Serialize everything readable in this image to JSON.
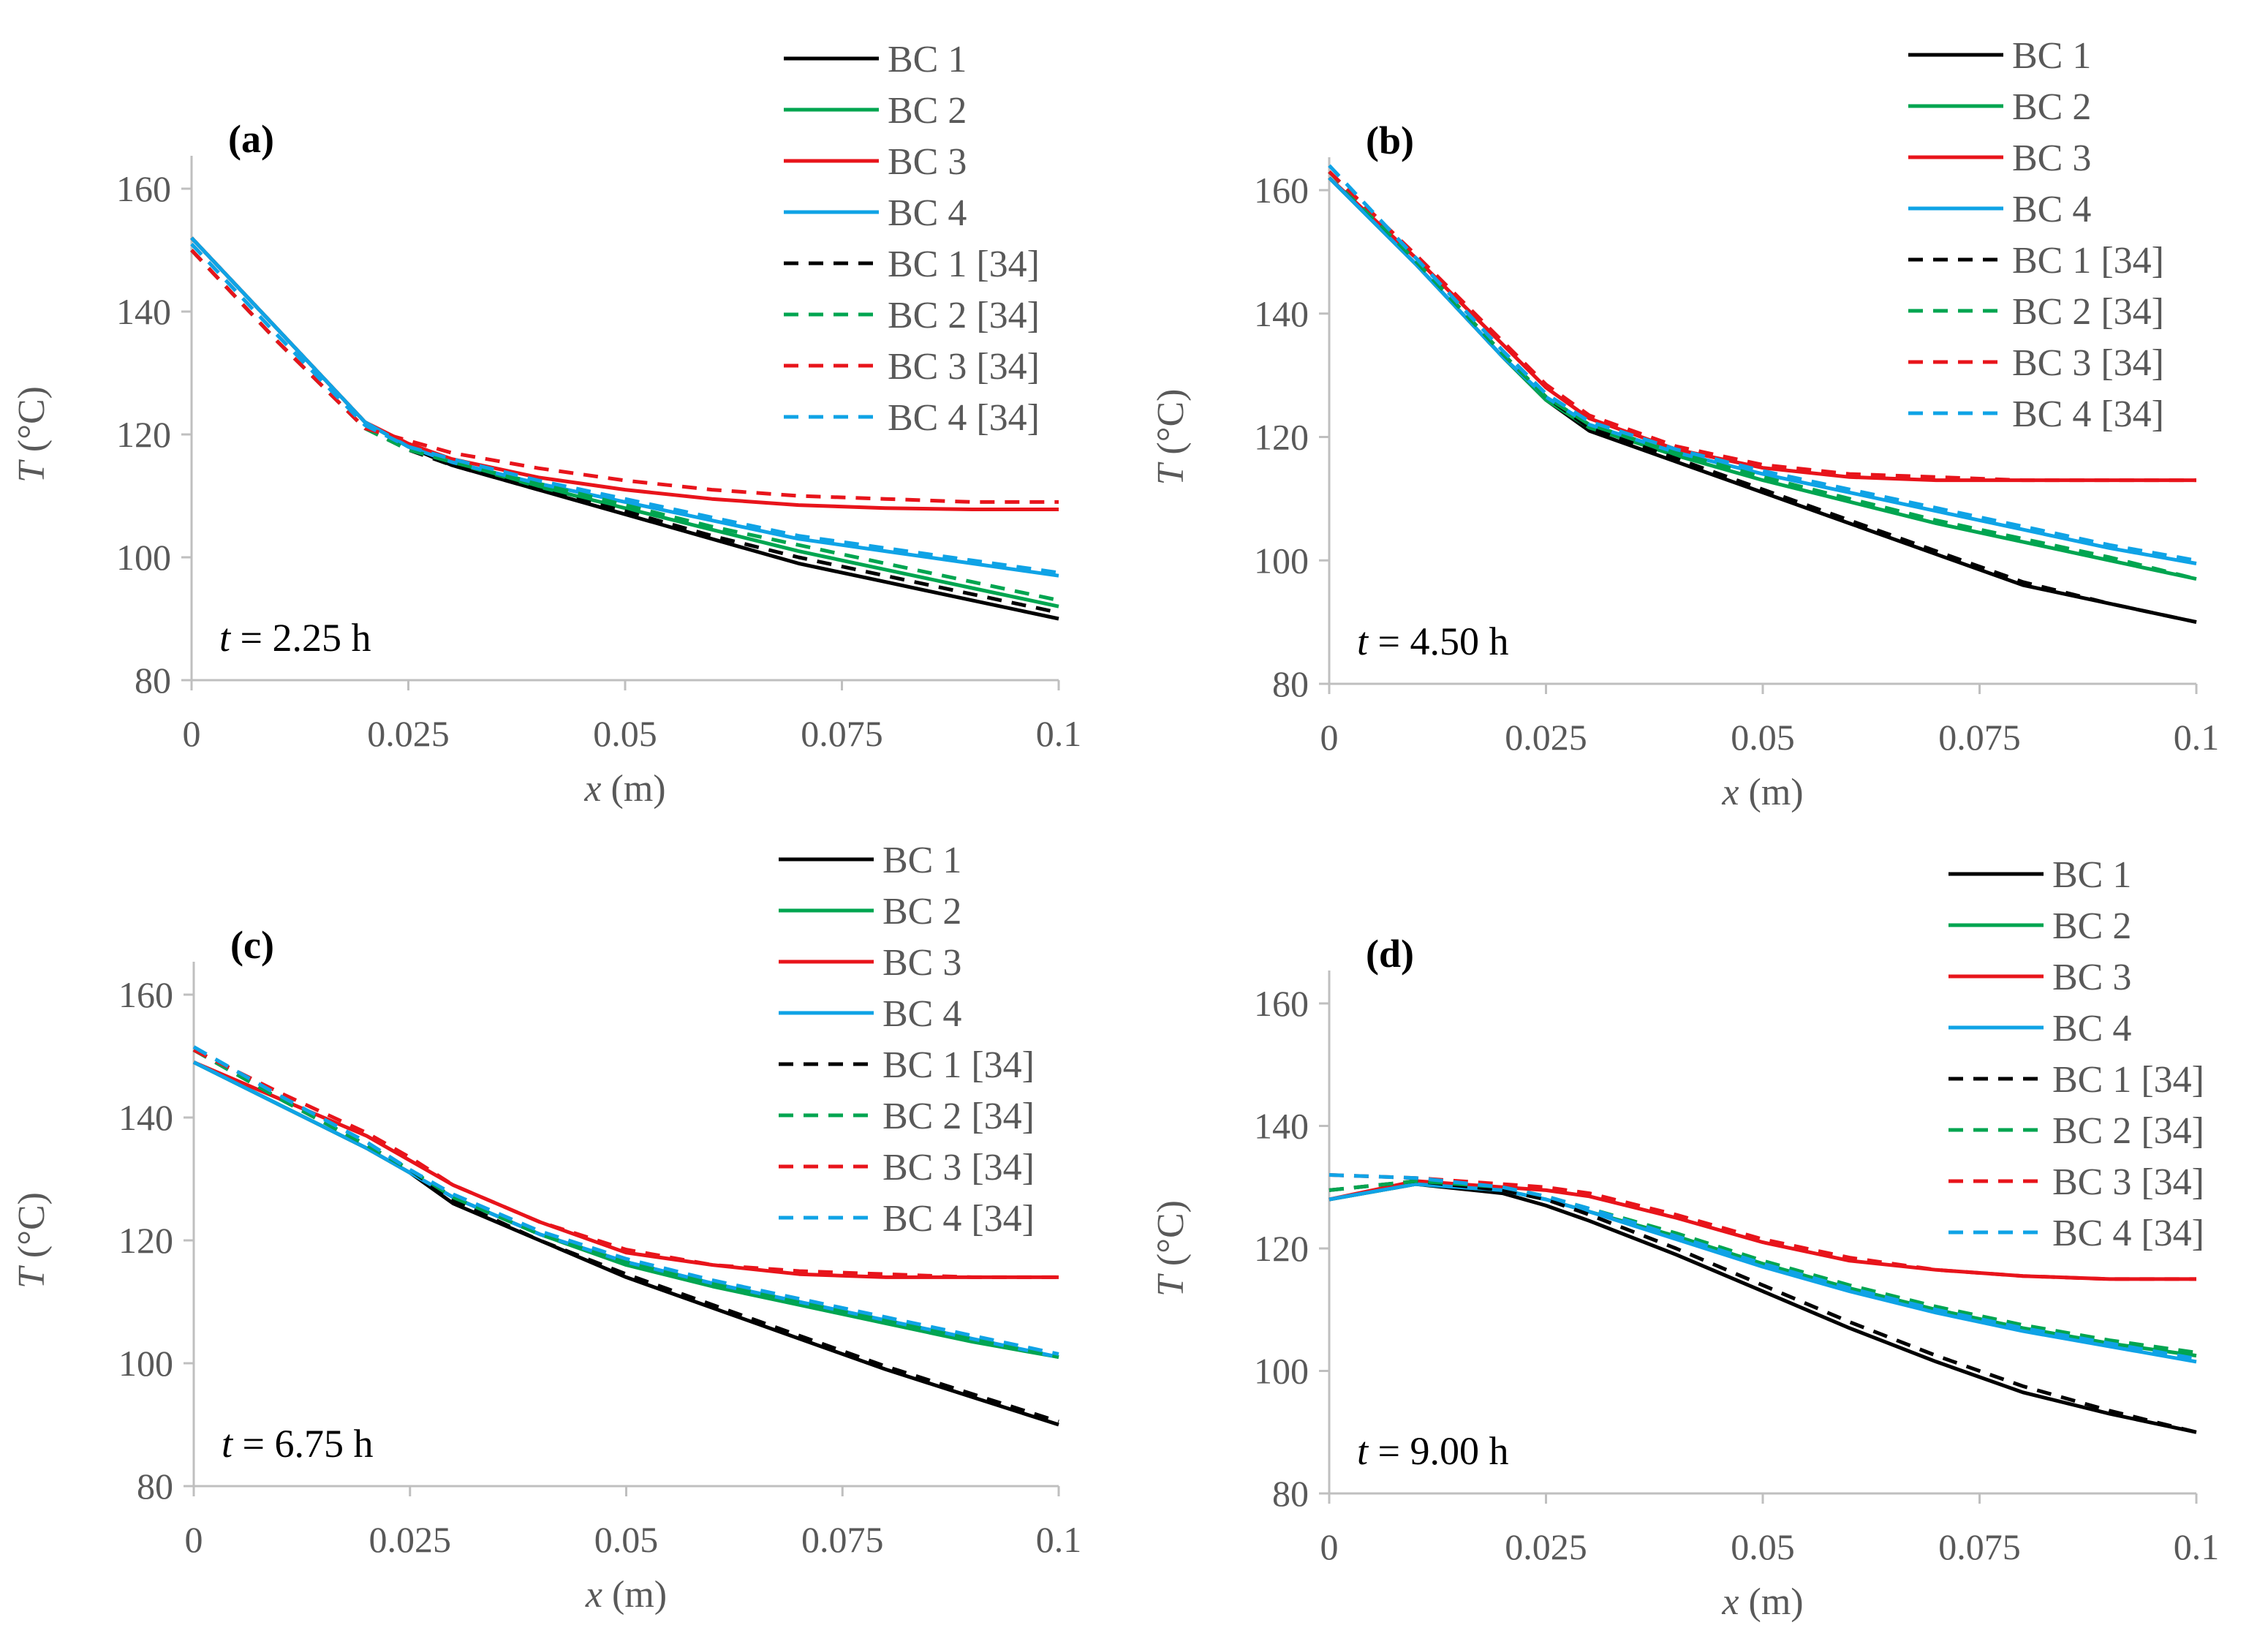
{
  "series_styles": [
    {
      "key": "bc1",
      "name": "BC 1",
      "color": "#000000",
      "dashed": false
    },
    {
      "key": "bc2",
      "name": "BC 2",
      "color": "#00A550",
      "dashed": false
    },
    {
      "key": "bc3",
      "name": "BC 3",
      "color": "#E8141B",
      "dashed": false
    },
    {
      "key": "bc4",
      "name": "BC 4",
      "color": "#0FA3E6",
      "dashed": false
    },
    {
      "key": "bc1_ref",
      "name": "BC 1 [34]",
      "color": "#000000",
      "dashed": true
    },
    {
      "key": "bc2_ref",
      "name": "BC 2 [34]",
      "color": "#00A550",
      "dashed": true
    },
    {
      "key": "bc3_ref",
      "name": "BC 3 [34]",
      "color": "#E8141B",
      "dashed": true
    },
    {
      "key": "bc4_ref",
      "name": "BC 4 [34]",
      "color": "#0FA3E6",
      "dashed": true
    }
  ],
  "chart_data": [
    {
      "type": "line",
      "panel_label": "(a)",
      "time_label": {
        "var": "t",
        "text": " = 2.25 h"
      },
      "xlabel": {
        "var": "x",
        "unit": " (m)"
      },
      "ylabel": {
        "var": "T",
        "unit": " (°C)"
      },
      "xlim": [
        0,
        0.1
      ],
      "ylim": [
        80,
        160
      ],
      "xticks": [
        "0",
        "0.025",
        "0.05",
        "0.075",
        "0.1"
      ],
      "yticks": [
        "80",
        "100",
        "120",
        "140",
        "160"
      ],
      "x": [
        0,
        0.01,
        0.02,
        0.025,
        0.03,
        0.04,
        0.05,
        0.06,
        0.07,
        0.08,
        0.09,
        0.1
      ],
      "series": [
        {
          "name": "BC 1",
          "values": [
            152,
            137,
            122,
            118,
            115,
            111,
            107,
            103,
            99,
            96,
            93,
            90
          ]
        },
        {
          "name": "BC 2",
          "values": [
            152,
            137,
            122,
            118,
            115.5,
            111.5,
            108,
            104.5,
            101,
            98,
            95,
            92
          ]
        },
        {
          "name": "BC 3",
          "values": [
            152,
            137,
            122,
            118.5,
            116,
            113,
            111,
            109.5,
            108.5,
            108,
            107.8,
            107.8
          ]
        },
        {
          "name": "BC 4",
          "values": [
            152,
            137,
            122,
            118,
            115.5,
            112,
            109,
            106,
            103,
            101,
            99,
            97
          ]
        },
        {
          "name": "BC 1 [34]",
          "values": [
            150,
            135,
            121,
            117.5,
            115,
            111,
            107.5,
            103.5,
            100,
            97,
            94,
            91
          ]
        },
        {
          "name": "BC 2 [34]",
          "values": [
            150,
            135,
            121,
            117.5,
            115.5,
            112,
            108.5,
            105,
            102,
            99,
            96,
            93
          ]
        },
        {
          "name": "BC 3 [34]",
          "values": [
            150,
            135,
            121,
            119,
            117,
            114.5,
            112.5,
            111,
            110,
            109.5,
            109,
            109
          ]
        },
        {
          "name": "BC 4 [34]",
          "values": [
            151,
            136,
            121.5,
            118,
            116,
            112.5,
            109.5,
            106.5,
            103.5,
            101.5,
            99.5,
            97.5
          ]
        }
      ]
    },
    {
      "type": "line",
      "panel_label": "(b)",
      "time_label": {
        "var": "t",
        "text": " = 4.50 h"
      },
      "xlabel": {
        "var": "x",
        "unit": " (m)"
      },
      "ylabel": {
        "var": "T",
        "unit": " (°C)"
      },
      "xlim": [
        0,
        0.1
      ],
      "ylim": [
        80,
        160
      ],
      "xticks": [
        "0",
        "0.025",
        "0.05",
        "0.075",
        "0.1"
      ],
      "yticks": [
        "80",
        "100",
        "120",
        "140",
        "160"
      ],
      "x": [
        0,
        0.01,
        0.02,
        0.025,
        0.03,
        0.04,
        0.05,
        0.06,
        0.07,
        0.08,
        0.09,
        0.1
      ],
      "series": [
        {
          "name": "BC 1",
          "values": [
            162,
            148,
            133,
            126,
            121,
            116,
            111,
            106,
            101,
            96,
            93,
            90
          ]
        },
        {
          "name": "BC 2",
          "values": [
            162,
            148,
            133,
            126,
            121.5,
            117,
            113,
            109.5,
            106,
            103,
            100,
            97
          ]
        },
        {
          "name": "BC 3",
          "values": [
            162,
            149,
            135,
            128,
            123,
            118,
            115,
            113.5,
            113,
            113,
            113,
            113
          ]
        },
        {
          "name": "BC 4",
          "values": [
            162,
            148,
            133,
            126.5,
            122,
            117.5,
            114,
            111,
            108,
            105,
            102,
            99.5
          ]
        },
        {
          "name": "BC 1 [34]",
          "values": [
            163,
            148.5,
            133.5,
            126.5,
            121.5,
            116.5,
            111.5,
            106.5,
            101.5,
            96.5,
            93,
            90
          ]
        },
        {
          "name": "BC 2 [34]",
          "values": [
            163,
            148.5,
            133.5,
            126.5,
            122,
            117.5,
            113.5,
            110,
            106.5,
            103.5,
            100.5,
            97
          ]
        },
        {
          "name": "BC 3 [34]",
          "values": [
            163,
            149.5,
            135.5,
            128.5,
            123.5,
            118.5,
            115.5,
            114,
            113.5,
            113,
            113,
            113
          ]
        },
        {
          "name": "BC 4 [34]",
          "values": [
            164,
            149,
            134,
            127,
            122.5,
            118,
            114.5,
            111.5,
            108.5,
            105.5,
            102.5,
            100
          ]
        }
      ]
    },
    {
      "type": "line",
      "panel_label": "(c)",
      "time_label": {
        "var": "t",
        "text": " = 6.75 h"
      },
      "xlabel": {
        "var": "x",
        "unit": " (m)"
      },
      "ylabel": {
        "var": "T",
        "unit": " (°C)"
      },
      "xlim": [
        0,
        0.1
      ],
      "ylim": [
        80,
        160
      ],
      "xticks": [
        "0",
        "0.025",
        "0.05",
        "0.075",
        "0.1"
      ],
      "yticks": [
        "80",
        "100",
        "120",
        "140",
        "160"
      ],
      "x": [
        0,
        0.01,
        0.02,
        0.025,
        0.03,
        0.04,
        0.05,
        0.06,
        0.07,
        0.08,
        0.09,
        0.1
      ],
      "series": [
        {
          "name": "BC 1",
          "values": [
            149,
            142,
            135,
            131,
            126,
            120,
            114,
            109,
            104,
            99,
            94.5,
            90
          ]
        },
        {
          "name": "BC 2",
          "values": [
            149,
            142,
            135,
            131,
            127,
            121,
            116,
            112.5,
            109.5,
            106.5,
            103.5,
            101
          ]
        },
        {
          "name": "BC 3",
          "values": [
            149,
            143,
            137,
            133,
            129,
            123,
            118,
            116,
            114.5,
            114,
            114,
            114
          ]
        },
        {
          "name": "BC 4",
          "values": [
            149,
            142,
            135,
            131,
            127,
            121,
            116.5,
            113,
            110,
            107,
            104,
            101
          ]
        },
        {
          "name": "BC 1 [34]",
          "values": [
            151,
            143,
            135.5,
            131.5,
            126.5,
            120,
            114.5,
            109.5,
            104.5,
            99.5,
            95,
            90.5
          ]
        },
        {
          "name": "BC 2 [34]",
          "values": [
            151,
            143,
            135.5,
            131.5,
            127,
            121,
            116.5,
            113,
            110,
            107,
            104,
            101
          ]
        },
        {
          "name": "BC 3 [34]",
          "values": [
            151,
            144,
            137.5,
            133.5,
            129,
            123,
            118.5,
            116,
            115,
            114.5,
            114,
            114
          ]
        },
        {
          "name": "BC 4 [34]",
          "values": [
            151.5,
            143.5,
            136,
            131.5,
            127.5,
            121.5,
            117,
            113.5,
            110.5,
            107.5,
            104.5,
            101.5
          ]
        }
      ]
    },
    {
      "type": "line",
      "panel_label": "(d)",
      "time_label": {
        "var": "t",
        "text": " = 9.00 h"
      },
      "xlabel": {
        "var": "x",
        "unit": " (m)"
      },
      "ylabel": {
        "var": "T",
        "unit": " (°C)"
      },
      "xlim": [
        0,
        0.1
      ],
      "ylim": [
        80,
        160
      ],
      "xticks": [
        "0",
        "0.025",
        "0.05",
        "0.075",
        "0.1"
      ],
      "yticks": [
        "80",
        "100",
        "120",
        "140",
        "160"
      ],
      "x": [
        0,
        0.01,
        0.02,
        0.025,
        0.03,
        0.04,
        0.05,
        0.06,
        0.07,
        0.08,
        0.09,
        0.1
      ],
      "series": [
        {
          "name": "BC 1",
          "values": [
            128,
            130.5,
            129,
            127,
            124.5,
            119,
            113,
            107,
            101.5,
            96.5,
            93,
            90
          ]
        },
        {
          "name": "BC 2",
          "values": [
            128,
            130.5,
            129.5,
            128,
            126,
            122,
            117.5,
            113.5,
            110,
            107,
            104.5,
            102.5
          ]
        },
        {
          "name": "BC 3",
          "values": [
            128,
            131,
            130,
            129.5,
            128.5,
            125,
            121,
            118,
            116.5,
            115.5,
            115,
            115
          ]
        },
        {
          "name": "BC 4",
          "values": [
            128,
            130.5,
            129.5,
            128,
            126,
            121.5,
            117,
            113,
            109.5,
            106.5,
            104,
            101.5
          ]
        },
        {
          "name": "BC 1 [34]",
          "values": [
            129.5,
            131,
            129.5,
            128,
            125.5,
            120,
            114,
            108,
            102.5,
            97.5,
            93.5,
            90
          ]
        },
        {
          "name": "BC 2 [34]",
          "values": [
            129.5,
            131,
            130,
            128.5,
            126.5,
            122.5,
            118,
            114,
            110.5,
            107.5,
            105,
            103
          ]
        },
        {
          "name": "BC 3 [34]",
          "values": [
            132,
            131.5,
            130.5,
            130,
            129,
            125.5,
            121.5,
            118.5,
            116.5,
            115.5,
            115,
            115
          ]
        },
        {
          "name": "BC 4 [34]",
          "values": [
            132,
            131.5,
            130,
            128.5,
            126.5,
            122,
            117.5,
            113.5,
            110,
            107,
            104.5,
            102
          ]
        }
      ]
    }
  ]
}
